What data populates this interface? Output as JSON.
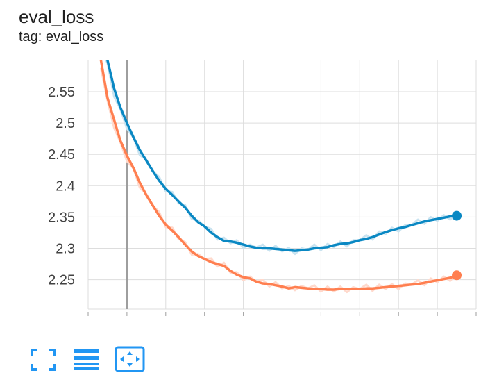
{
  "card": {
    "title": "eval_loss",
    "tag": "tag: eval_loss"
  },
  "colors": {
    "grid": "#dddddd",
    "axis": "#9e9e9e",
    "toolbar_icon": "#2196f3",
    "series_blue": "#0a88c3",
    "series_blue_raw": "#c9e3f0",
    "series_orange": "#ff7f50",
    "series_orange_raw": "#ffd9cc"
  },
  "toolbar": {
    "icons": [
      "fullscreen-icon",
      "toggle-log-scale-icon",
      "fit-domain-icon"
    ]
  },
  "chart_data": {
    "type": "line",
    "title": "eval_loss",
    "xlabel": "",
    "ylabel": "",
    "xlim": [
      0,
      1.0
    ],
    "ylim": [
      2.2,
      2.6
    ],
    "y_ticks": [
      2.25,
      2.3,
      2.35,
      2.4,
      2.45,
      2.5,
      2.55
    ],
    "y_tick_labels": [
      "2.25",
      "2.3",
      "2.35",
      "2.4",
      "2.45",
      "2.5",
      "2.55"
    ],
    "grid": true,
    "legend": "none",
    "series": [
      {
        "color": "#0a88c3",
        "x": [
          0.033,
          0.05,
          0.067,
          0.083,
          0.1,
          0.117,
          0.133,
          0.15,
          0.167,
          0.183,
          0.2,
          0.217,
          0.233,
          0.25,
          0.267,
          0.283,
          0.3,
          0.317,
          0.333,
          0.35,
          0.367,
          0.383,
          0.4,
          0.417,
          0.433,
          0.45,
          0.467,
          0.483,
          0.5,
          0.517,
          0.533,
          0.55,
          0.567,
          0.583,
          0.6,
          0.617,
          0.633,
          0.65,
          0.667,
          0.683,
          0.7,
          0.717,
          0.733,
          0.75,
          0.767,
          0.783,
          0.8,
          0.817,
          0.833,
          0.85,
          0.867,
          0.883,
          0.9,
          0.917,
          0.933,
          0.95
        ],
        "values": [
          2.63,
          2.6,
          2.555,
          2.525,
          2.5,
          2.477,
          2.457,
          2.44,
          2.423,
          2.408,
          2.395,
          2.385,
          2.375,
          2.365,
          2.352,
          2.342,
          2.335,
          2.325,
          2.318,
          2.312,
          2.311,
          2.309,
          2.306,
          2.303,
          2.301,
          2.3,
          2.3,
          2.299,
          2.298,
          2.297,
          2.296,
          2.297,
          2.298,
          2.3,
          2.301,
          2.302,
          2.305,
          2.307,
          2.308,
          2.31,
          2.313,
          2.315,
          2.318,
          2.322,
          2.326,
          2.329,
          2.332,
          2.334,
          2.337,
          2.34,
          2.343,
          2.345,
          2.347,
          2.349,
          2.351,
          2.352
        ]
      },
      {
        "color": "#ff7f50",
        "x": [
          0.033,
          0.05,
          0.067,
          0.083,
          0.1,
          0.117,
          0.133,
          0.15,
          0.167,
          0.183,
          0.2,
          0.217,
          0.233,
          0.25,
          0.267,
          0.283,
          0.3,
          0.317,
          0.333,
          0.35,
          0.367,
          0.383,
          0.4,
          0.417,
          0.433,
          0.45,
          0.467,
          0.483,
          0.5,
          0.517,
          0.533,
          0.55,
          0.567,
          0.583,
          0.6,
          0.617,
          0.633,
          0.65,
          0.667,
          0.683,
          0.7,
          0.717,
          0.733,
          0.75,
          0.767,
          0.783,
          0.8,
          0.817,
          0.833,
          0.85,
          0.867,
          0.883,
          0.9,
          0.917,
          0.933,
          0.95
        ],
        "values": [
          2.6,
          2.54,
          2.505,
          2.472,
          2.448,
          2.428,
          2.405,
          2.385,
          2.368,
          2.352,
          2.338,
          2.328,
          2.318,
          2.306,
          2.295,
          2.288,
          2.283,
          2.278,
          2.275,
          2.272,
          2.264,
          2.258,
          2.254,
          2.252,
          2.247,
          2.244,
          2.243,
          2.241,
          2.239,
          2.236,
          2.238,
          2.237,
          2.236,
          2.235,
          2.235,
          2.234,
          2.234,
          2.235,
          2.235,
          2.235,
          2.235,
          2.236,
          2.236,
          2.237,
          2.238,
          2.239,
          2.24,
          2.241,
          2.242,
          2.243,
          2.245,
          2.247,
          2.249,
          2.251,
          2.253,
          2.257
        ]
      }
    ]
  }
}
